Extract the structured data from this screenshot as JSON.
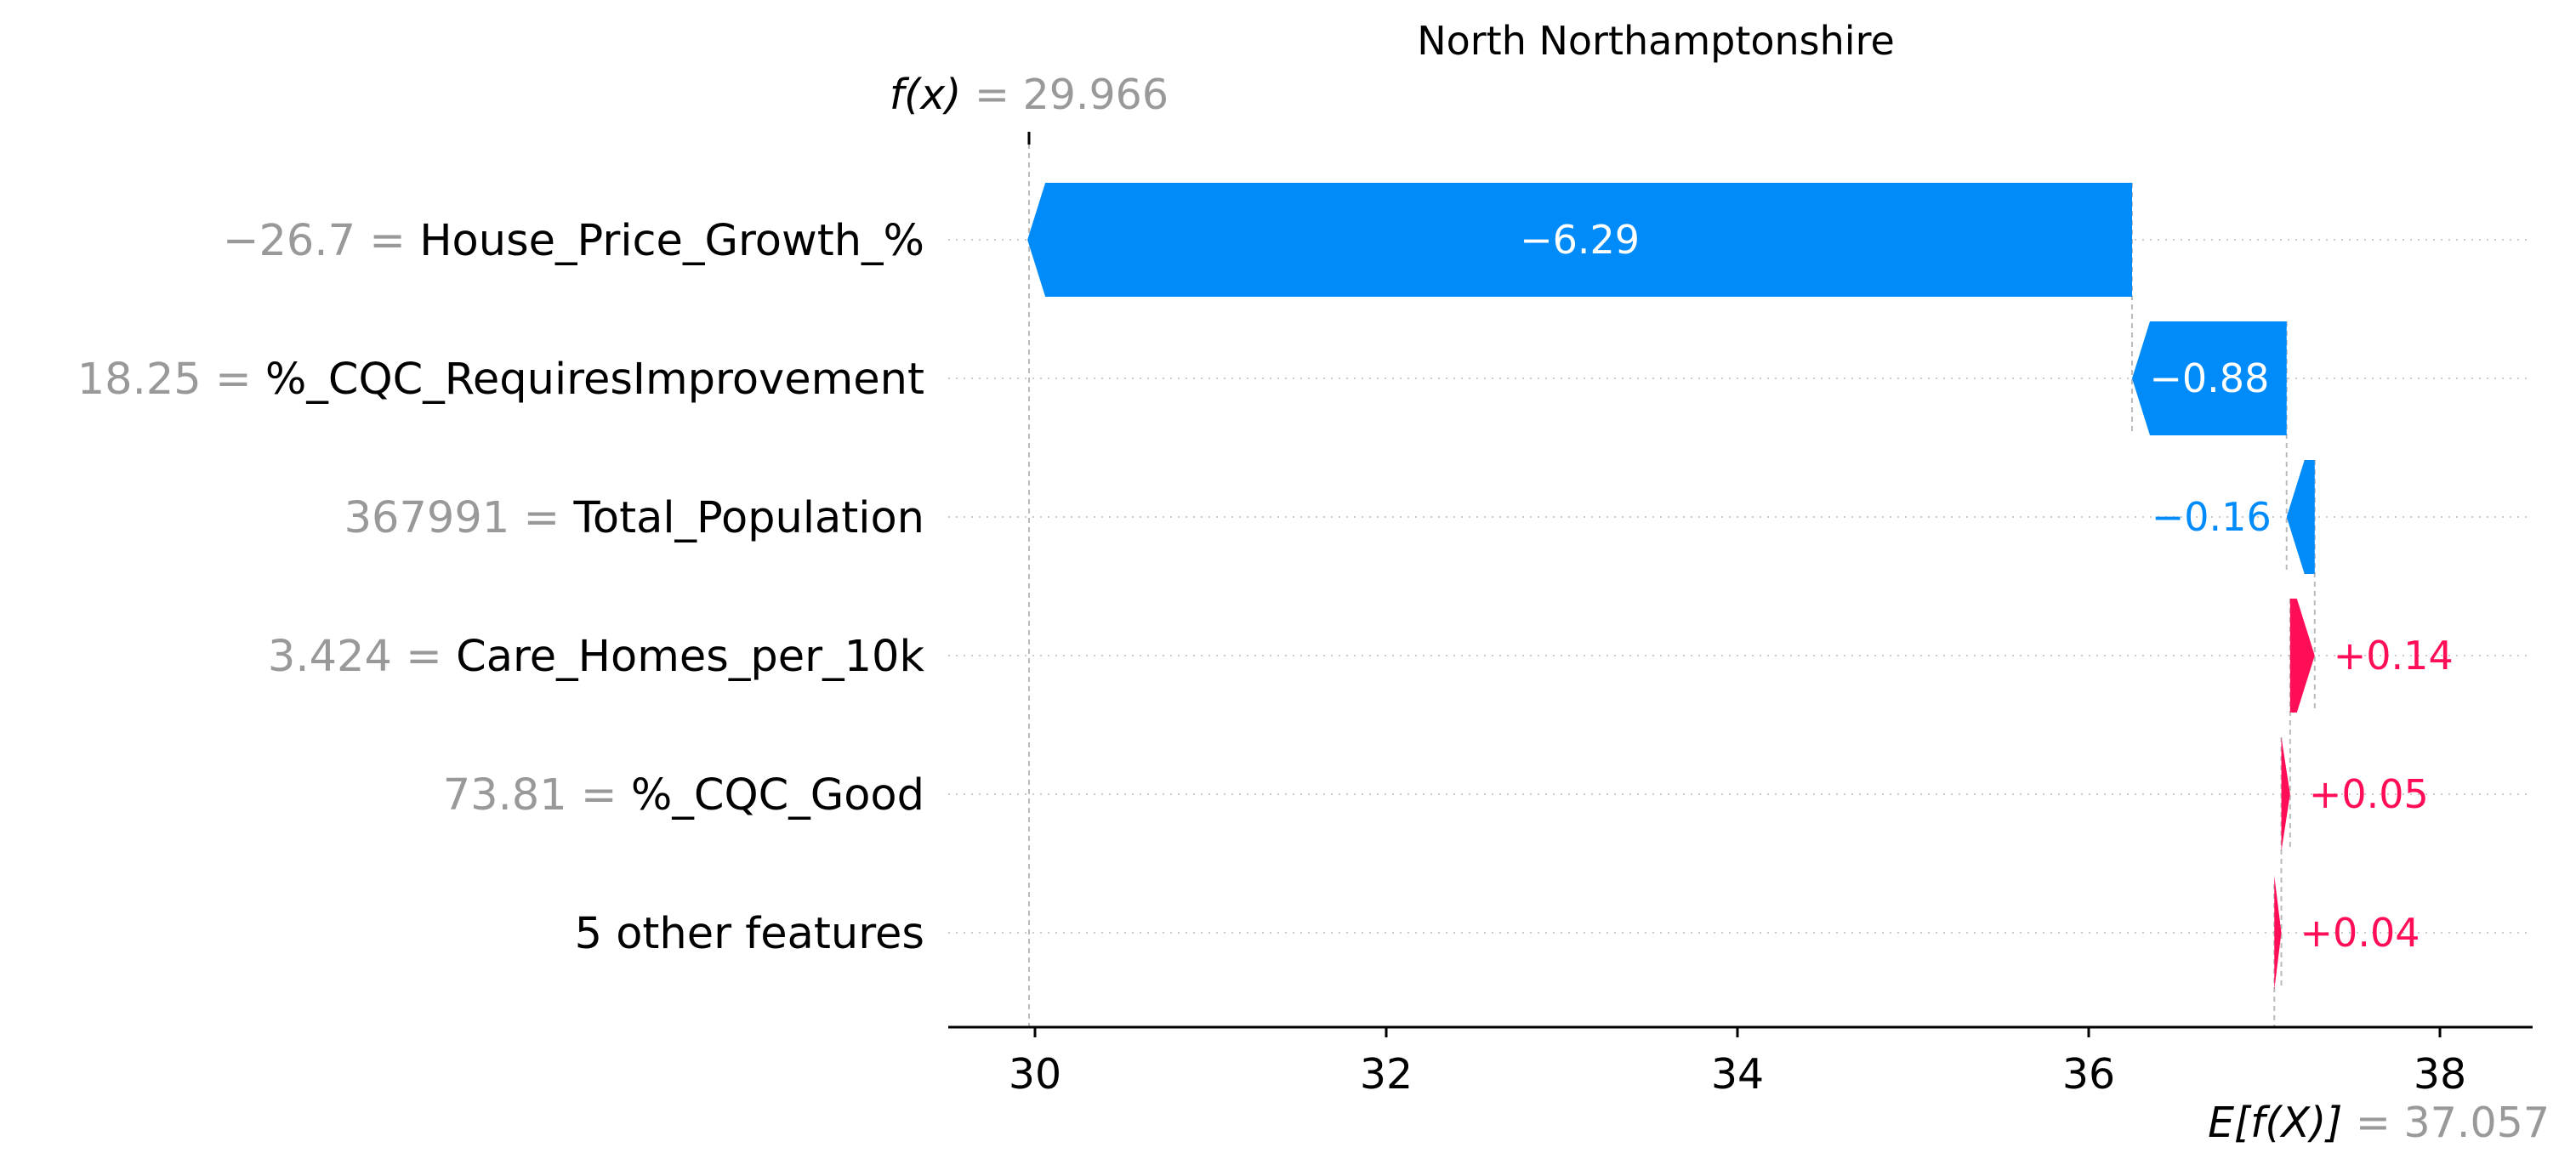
{
  "chart_data": {
    "type": "waterfall",
    "title": "North Northamptonshire",
    "base_value": 37.057,
    "output_value": 29.966,
    "base_label": "E[f(X)]",
    "base_value_text": "= 37.057",
    "output_label": "f(x)",
    "output_value_text": "= 29.966",
    "x_ticks": [
      "30",
      "32",
      "34",
      "36",
      "38"
    ],
    "xlim": [
      29.5,
      38.5
    ],
    "grid": "horizontal dotted",
    "positive_color": "#ff0d57",
    "negative_color": "#008bfb",
    "features": [
      {
        "name": "House_Price_Growth_%",
        "value_text": "−26.7 =",
        "shap": -6.29,
        "label": "−6.29"
      },
      {
        "name": "%_CQC_RequiresImprovement",
        "value_text": "18.25 =",
        "shap": -0.88,
        "label": "−0.88"
      },
      {
        "name": "Total_Population",
        "value_text": "367991 =",
        "shap": -0.16,
        "label": "−0.16"
      },
      {
        "name": "Care_Homes_per_10k",
        "value_text": "3.424 =",
        "shap": 0.14,
        "label": "+0.14"
      },
      {
        "name": "%_CQC_Good",
        "value_text": "73.81 =",
        "shap": 0.05,
        "label": "+0.05"
      },
      {
        "name": "5 other features",
        "value_text": "",
        "shap": 0.04,
        "label": "+0.04"
      }
    ]
  }
}
